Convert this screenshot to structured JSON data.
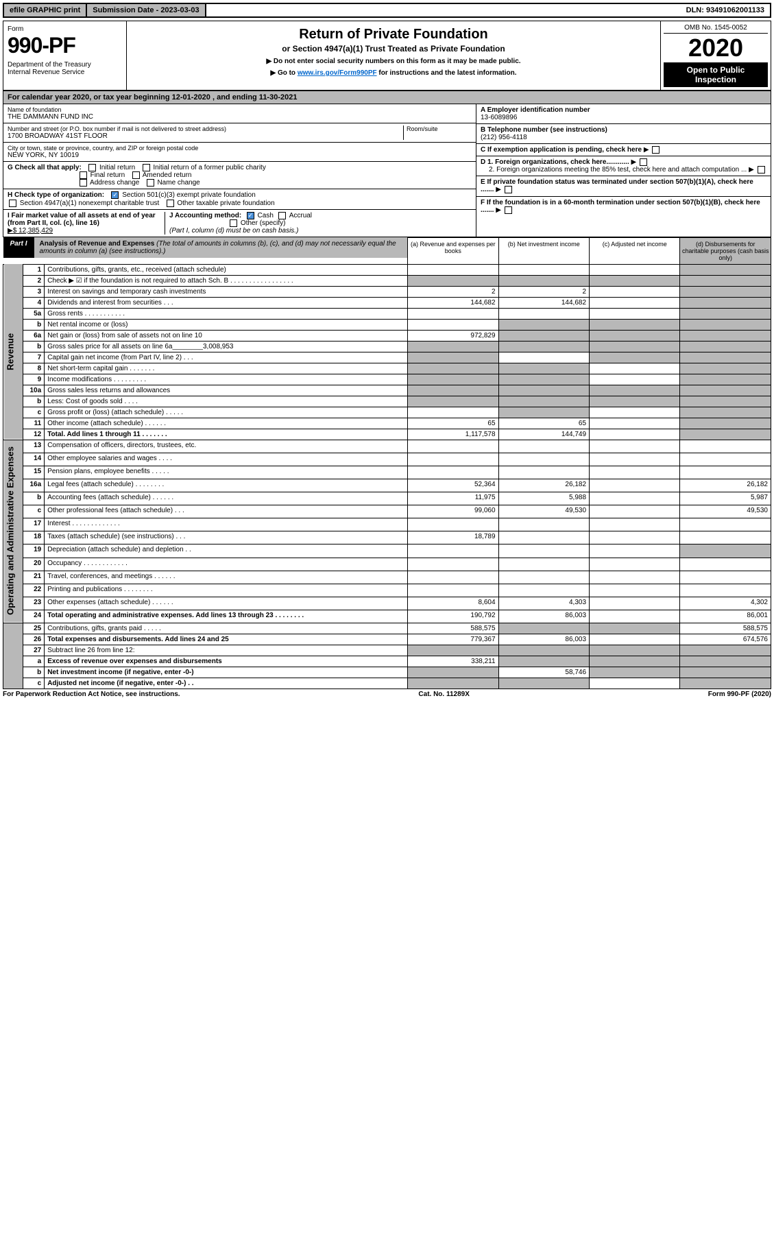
{
  "top": {
    "efile": "efile GRAPHIC print",
    "subdate_label": "Submission Date - 2023-03-03",
    "dln": "DLN: 93491062001133"
  },
  "header": {
    "form_label": "Form",
    "form_num": "990-PF",
    "dept": "Department of the Treasury\nInternal Revenue Service",
    "title": "Return of Private Foundation",
    "subtitle": "or Section 4947(a)(1) Trust Treated as Private Foundation",
    "note1": "▶ Do not enter social security numbers on this form as it may be made public.",
    "note2_pre": "▶ Go to ",
    "note2_link": "www.irs.gov/Form990PF",
    "note2_post": " for instructions and the latest information.",
    "omb": "OMB No. 1545-0052",
    "year": "2020",
    "open_pub": "Open to Public Inspection"
  },
  "cal_year": "For calendar year 2020, or tax year beginning 12-01-2020                               , and ending 11-30-2021",
  "entity": {
    "name_label": "Name of foundation",
    "name": "THE DAMMANN FUND INC",
    "addr_label": "Number and street (or P.O. box number if mail is not delivered to street address)",
    "room_label": "Room/suite",
    "addr": "1700 BROADWAY 41ST FLOOR",
    "city_label": "City or town, state or province, country, and ZIP or foreign postal code",
    "city": "NEW YORK, NY  10019",
    "a_label": "A Employer identification number",
    "ein": "13-6089896",
    "b_label": "B Telephone number (see instructions)",
    "phone": "(212) 956-4118",
    "c_label": "C If exemption application is pending, check here",
    "d1": "D 1. Foreign organizations, check here............",
    "d2": "2. Foreign organizations meeting the 85% test, check here and attach computation ...",
    "e": "E  If private foundation status was terminated under section 507(b)(1)(A), check here .......",
    "f": "F  If the foundation is in a 60-month termination under section 507(b)(1)(B), check here .......",
    "g_label": "G Check all that apply:",
    "g_opts": [
      "Initial return",
      "Initial return of a former public charity",
      "Final return",
      "Amended return",
      "Address change",
      "Name change"
    ],
    "h_label": "H Check type of organization:",
    "h_opt1": "Section 501(c)(3) exempt private foundation",
    "h_opt2": "Section 4947(a)(1) nonexempt charitable trust",
    "h_opt3": "Other taxable private foundation",
    "i_label": "I Fair market value of all assets at end of year (from Part II, col. (c), line 16)",
    "i_val": "▶$  12,385,429",
    "j_label": "J Accounting method:",
    "j_cash": "Cash",
    "j_accrual": "Accrual",
    "j_other": "Other (specify)",
    "j_note": "(Part I, column (d) must be on cash basis.)"
  },
  "part1": {
    "label": "Part I",
    "title": "Analysis of Revenue and Expenses",
    "title_note": " (The total of amounts in columns (b), (c), and (d) may not necessarily equal the amounts in column (a) (see instructions).)",
    "cols": {
      "a": "(a) Revenue and expenses per books",
      "b": "(b) Net investment income",
      "c": "(c) Adjusted net income",
      "d": "(d) Disbursements for charitable purposes (cash basis only)"
    }
  },
  "sections": {
    "revenue": "Revenue",
    "expenses": "Operating and Administrative Expenses"
  },
  "rows": [
    {
      "ln": "1",
      "desc": "Contributions, gifts, grants, etc., received (attach schedule)",
      "a": "",
      "b": "",
      "c": "",
      "d": "",
      "dgrey": true
    },
    {
      "ln": "2",
      "desc": "Check ▶ ☑ if the foundation is not required to attach Sch. B  . . . . . . . . . . . . . . . . .",
      "a": "",
      "b": "",
      "c": "",
      "d": "",
      "allgrey": true
    },
    {
      "ln": "3",
      "desc": "Interest on savings and temporary cash investments",
      "a": "2",
      "b": "2",
      "c": "",
      "d": "",
      "dgrey": true
    },
    {
      "ln": "4",
      "desc": "Dividends and interest from securities  .  .  .",
      "a": "144,682",
      "b": "144,682",
      "c": "",
      "d": "",
      "dgrey": true
    },
    {
      "ln": "5a",
      "desc": "Gross rents  .  .  .  .  .  .  .  .  .  .  .",
      "a": "",
      "b": "",
      "c": "",
      "d": "",
      "dgrey": true
    },
    {
      "ln": "b",
      "desc": "Net rental income or (loss)  ",
      "a": "",
      "b": "",
      "c": "",
      "d": "",
      "bcgrey": true,
      "dgrey": true
    },
    {
      "ln": "6a",
      "desc": "Net gain or (loss) from sale of assets not on line 10",
      "a": "972,829",
      "b": "",
      "c": "",
      "d": "",
      "bcgrey": true,
      "dgrey": true
    },
    {
      "ln": "b",
      "desc": "Gross sales price for all assets on line 6a________3,008,953",
      "a": "",
      "b": "",
      "c": "",
      "d": "",
      "allgrey": true
    },
    {
      "ln": "7",
      "desc": "Capital gain net income (from Part IV, line 2)  .  .  .",
      "a": "",
      "b": "",
      "c": "",
      "d": "",
      "agrey": true,
      "cgrey": true,
      "dgrey": true
    },
    {
      "ln": "8",
      "desc": "Net short-term capital gain  .  .  .  .  .  .  .",
      "a": "",
      "b": "",
      "c": "",
      "d": "",
      "agrey": true,
      "bgrey": true,
      "dgrey": true
    },
    {
      "ln": "9",
      "desc": "Income modifications .  .  .  .  .  .  .  .  .",
      "a": "",
      "b": "",
      "c": "",
      "d": "",
      "agrey": true,
      "bgrey": true,
      "dgrey": true
    },
    {
      "ln": "10a",
      "desc": "Gross sales less returns and allowances",
      "a": "",
      "b": "",
      "c": "",
      "d": "",
      "allgrey": true
    },
    {
      "ln": "b",
      "desc": "Less: Cost of goods sold  .  .  .  .",
      "a": "",
      "b": "",
      "c": "",
      "d": "",
      "allgrey": true
    },
    {
      "ln": "c",
      "desc": "Gross profit or (loss) (attach schedule)  .  .  .  .  .",
      "a": "",
      "b": "",
      "c": "",
      "d": "",
      "bgrey": true,
      "dgrey": true
    },
    {
      "ln": "11",
      "desc": "Other income (attach schedule)  .  .  .  .  .  .",
      "a": "65",
      "b": "65",
      "c": "",
      "d": "",
      "dgrey": true
    },
    {
      "ln": "12",
      "desc": "Total. Add lines 1 through 11  .  .  .  .  .  .  .",
      "a": "1,117,578",
      "b": "144,749",
      "c": "",
      "d": "",
      "dgrey": true,
      "bold": true
    },
    {
      "ln": "13",
      "desc": "Compensation of officers, directors, trustees, etc.",
      "a": "",
      "b": "",
      "c": "",
      "d": ""
    },
    {
      "ln": "14",
      "desc": "Other employee salaries and wages  .  .  .  .",
      "a": "",
      "b": "",
      "c": "",
      "d": ""
    },
    {
      "ln": "15",
      "desc": "Pension plans, employee benefits  .  .  .  .  .",
      "a": "",
      "b": "",
      "c": "",
      "d": ""
    },
    {
      "ln": "16a",
      "desc": "Legal fees (attach schedule) .  .  .  .  .  .  .  .",
      "a": "52,364",
      "b": "26,182",
      "c": "",
      "d": "26,182"
    },
    {
      "ln": "b",
      "desc": "Accounting fees (attach schedule) .  .  .  .  .  .",
      "a": "11,975",
      "b": "5,988",
      "c": "",
      "d": "5,987"
    },
    {
      "ln": "c",
      "desc": "Other professional fees (attach schedule)  .  .  .",
      "a": "99,060",
      "b": "49,530",
      "c": "",
      "d": "49,530"
    },
    {
      "ln": "17",
      "desc": "Interest .  .  .  .  .  .  .  .  .  .  .  .  .",
      "a": "",
      "b": "",
      "c": "",
      "d": ""
    },
    {
      "ln": "18",
      "desc": "Taxes (attach schedule) (see instructions)  .  .  .",
      "a": "18,789",
      "b": "",
      "c": "",
      "d": ""
    },
    {
      "ln": "19",
      "desc": "Depreciation (attach schedule) and depletion  .  .",
      "a": "",
      "b": "",
      "c": "",
      "d": "",
      "dgrey": true
    },
    {
      "ln": "20",
      "desc": "Occupancy .  .  .  .  .  .  .  .  .  .  .  .",
      "a": "",
      "b": "",
      "c": "",
      "d": ""
    },
    {
      "ln": "21",
      "desc": "Travel, conferences, and meetings .  .  .  .  .  .",
      "a": "",
      "b": "",
      "c": "",
      "d": ""
    },
    {
      "ln": "22",
      "desc": "Printing and publications .  .  .  .  .  .  .  .",
      "a": "",
      "b": "",
      "c": "",
      "d": ""
    },
    {
      "ln": "23",
      "desc": "Other expenses (attach schedule) .  .  .  .  .  .",
      "a": "8,604",
      "b": "4,303",
      "c": "",
      "d": "4,302"
    },
    {
      "ln": "24",
      "desc": "Total operating and administrative expenses. Add lines 13 through 23  .  .  .  .  .  .  .  .",
      "a": "190,792",
      "b": "86,003",
      "c": "",
      "d": "86,001",
      "bold": true
    },
    {
      "ln": "25",
      "desc": "Contributions, gifts, grants paid  .  .  .  .  .",
      "a": "588,575",
      "b": "",
      "c": "",
      "d": "588,575",
      "bgrey": true,
      "cgrey": true
    },
    {
      "ln": "26",
      "desc": "Total expenses and disbursements. Add lines 24 and 25",
      "a": "779,367",
      "b": "86,003",
      "c": "",
      "d": "674,576",
      "bold": true
    },
    {
      "ln": "27",
      "desc": "Subtract line 26 from line 12:",
      "a": "",
      "b": "",
      "c": "",
      "d": "",
      "allgrey": true
    },
    {
      "ln": "a",
      "desc": "Excess of revenue over expenses and disbursements",
      "a": "338,211",
      "b": "",
      "c": "",
      "d": "",
      "bold": true,
      "bcgrey": true,
      "dgrey": true
    },
    {
      "ln": "b",
      "desc": "Net investment income (if negative, enter -0-)",
      "a": "",
      "b": "58,746",
      "c": "",
      "d": "",
      "bold": true,
      "agrey": true,
      "cgrey": true,
      "dgrey": true
    },
    {
      "ln": "c",
      "desc": "Adjusted net income (if negative, enter -0-)  .  .",
      "a": "",
      "b": "",
      "c": "",
      "d": "",
      "bold": true,
      "agrey": true,
      "bgrey": true,
      "dgrey": true
    }
  ],
  "footer": {
    "left": "For Paperwork Reduction Act Notice, see instructions.",
    "mid": "Cat. No. 11289X",
    "right": "Form 990-PF (2020)"
  }
}
